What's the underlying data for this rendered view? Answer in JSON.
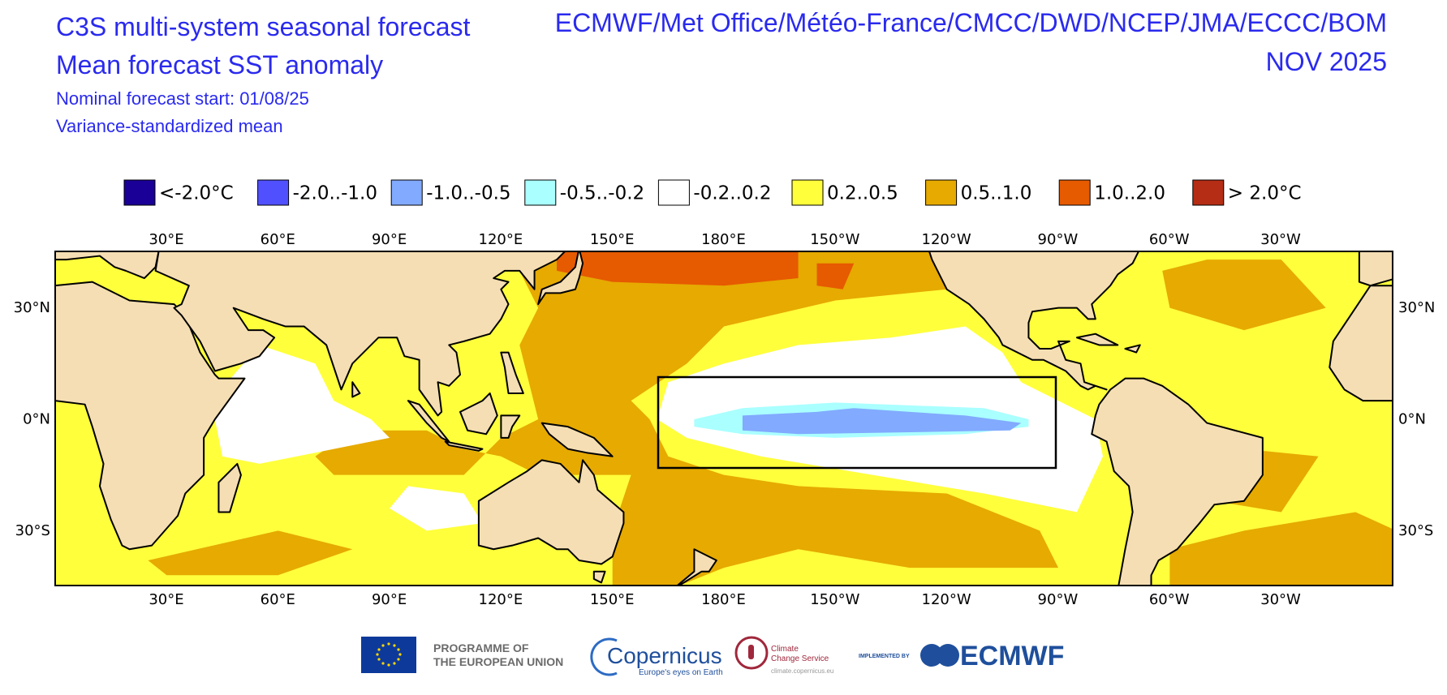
{
  "header": {
    "title": "C3S multi-system seasonal forecast",
    "subtitle": "Mean forecast SST anomaly",
    "forecast_start": "Nominal forecast start: 01/08/25",
    "method": "Variance-standardized mean",
    "systems": "ECMWF/Met Office/Météo-France/CMCC/DWD/NCEP/JMA/ECCC/BOM",
    "valid_month": "NOV 2025"
  },
  "legend": [
    {
      "label": "<-2.0°C",
      "color": "#1a0096"
    },
    {
      "label": "-2.0..-1.0",
      "color": "#5050ff"
    },
    {
      "label": "-1.0..-0.5",
      "color": "#82aaff"
    },
    {
      "label": "-0.5..-0.2",
      "color": "#aaffff"
    },
    {
      "label": "-0.2..0.2",
      "color": "#ffffff"
    },
    {
      "label": "0.2..0.5",
      "color": "#ffff3c"
    },
    {
      "label": "0.5..1.0",
      "color": "#e6aa00"
    },
    {
      "label": "1.0..2.0",
      "color": "#e65a00"
    },
    {
      "label": "> 2.0°C",
      "color": "#b42d14"
    }
  ],
  "map": {
    "lon_labels": [
      "30°E",
      "60°E",
      "90°E",
      "120°E",
      "150°E",
      "180°E",
      "150°W",
      "120°W",
      "90°W",
      "60°W",
      "30°W"
    ],
    "lat_labels": [
      "30°N",
      "0°N",
      "30°S"
    ]
  },
  "footer": {
    "eu_line1": "PROGRAMME OF",
    "eu_line2": "THE EUROPEAN UNION",
    "copernicus": "Copernicus",
    "copernicus_tagline": "Europe's eyes on Earth",
    "c3s_line1": "Climate",
    "c3s_line2": "Change Service",
    "c3s_url": "climate.copernicus.eu",
    "implemented_by": "IMPLEMENTED BY",
    "ecmwf": "ECMWF"
  }
}
